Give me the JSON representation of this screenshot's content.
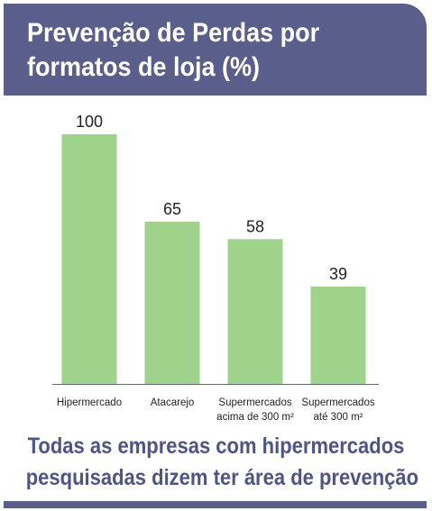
{
  "header": {
    "title_line1": "Prevenção de Perdas por",
    "title_line2": "formatos de loja (%)"
  },
  "chart_data": {
    "type": "bar",
    "title": "Prevenção de Perdas por formatos de loja (%)",
    "categories": [
      [
        "Hipermercado"
      ],
      [
        "Atacarejo"
      ],
      [
        "Supermercados",
        "acima de 300 m²"
      ],
      [
        "Supermercados",
        "até 300 m²"
      ]
    ],
    "values": [
      100,
      65,
      58,
      39
    ],
    "ylim": [
      0,
      100
    ],
    "grid": false,
    "bar_color": "#9fd28a"
  },
  "footer": {
    "line1": "Todas as empresas com hipermercados",
    "line2": "pesquisadas dizem ter área de prevenção"
  },
  "colors": {
    "accent": "#5a5e8a",
    "footer_text": "#4e5585",
    "bar": "#9fd28a"
  }
}
